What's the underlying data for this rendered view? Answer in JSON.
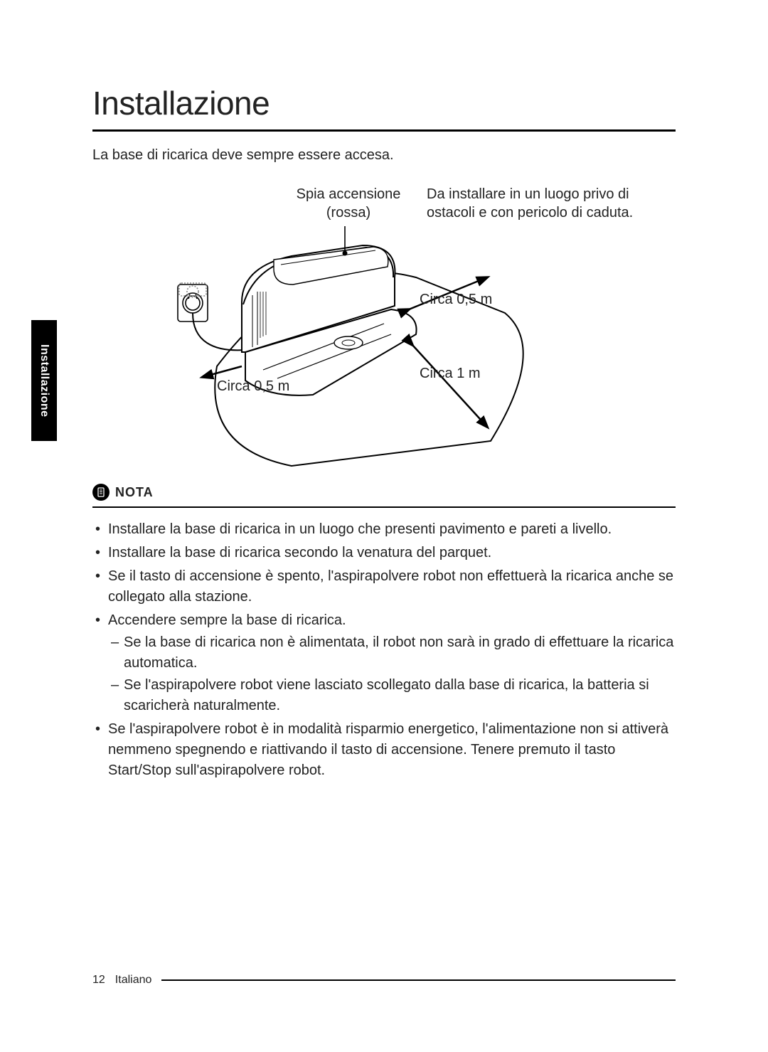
{
  "sideTab": {
    "label": "Installazione"
  },
  "title": "Installazione",
  "intro": "La base di ricarica deve sempre essere accesa.",
  "diagram": {
    "powerLed": {
      "line1": "Spia accensione",
      "line2": "(rossa)"
    },
    "placement": {
      "line1": "Da installare in un luogo privo di",
      "line2": "ostacoli e con pericolo di caduta."
    },
    "distLeft": "Circa 0,5 m",
    "distRight": "Circa 0,5 m",
    "distFront": "Circa 1 m",
    "stroke": "#000000",
    "fill": "#ffffff",
    "dashGray": "#8a8a8a"
  },
  "note": {
    "label": "NOTA",
    "items": [
      {
        "text": "Installare la base di ricarica in un luogo che presenti pavimento e pareti a livello."
      },
      {
        "text": "Installare la base di ricarica secondo la venatura del parquet."
      },
      {
        "text": "Se il tasto di accensione è spento, l'aspirapolvere robot non effettuerà la ricarica anche se collegato alla stazione."
      },
      {
        "text": "Accendere sempre la base di ricarica.",
        "sub": [
          "Se la base di ricarica non è alimentata, il robot non sarà in grado di effettuare la ricarica automatica.",
          "Se l'aspirapolvere robot viene lasciato scollegato dalla base di ricarica, la batteria si scaricherà naturalmente."
        ]
      },
      {
        "text": "Se l'aspirapolvere robot è in modalità risparmio energetico, l'alimentazione non si attiverà nemmeno spegnendo e riattivando il tasto di accensione. Tenere premuto il tasto Start/Stop sull'aspirapolvere robot."
      }
    ]
  },
  "footer": {
    "page": "12",
    "language": "Italiano"
  }
}
